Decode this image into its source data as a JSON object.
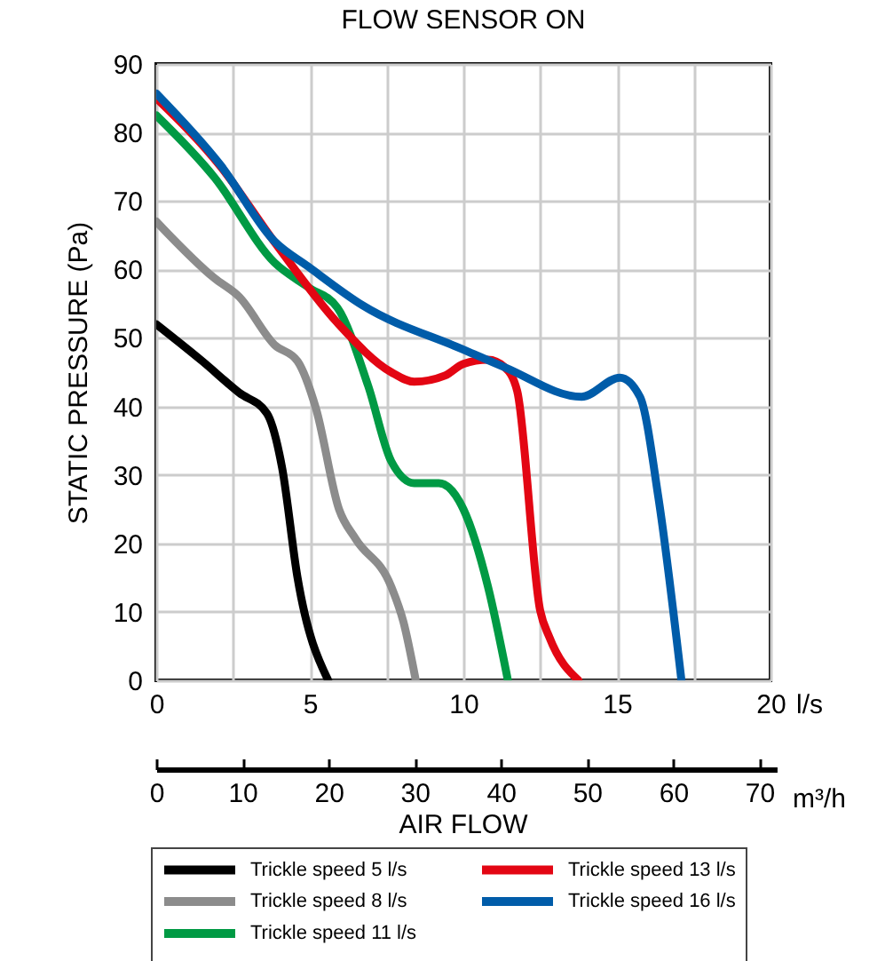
{
  "chart_data": {
    "type": "line",
    "title": "FLOW SENSOR ON",
    "xlabel": "l/s",
    "ylabel": "STATIC PRESSURE (Pa)",
    "x2label": "m³/h",
    "annotations": [
      "AIR FLOW"
    ],
    "xlim": [
      0,
      20
    ],
    "xticks": [
      0,
      {
        "value": 2.5,
        "label": null
      },
      5,
      {
        "value": 7.5,
        "label": null
      },
      10,
      {
        "value": 12.5,
        "label": null
      },
      15,
      {
        "value": 17.5,
        "label": null
      },
      20
    ],
    "ylim": [
      0,
      90
    ],
    "yticks": [
      0,
      10,
      20,
      30,
      40,
      50,
      60,
      70,
      80,
      90
    ],
    "x2lim": [
      0,
      72
    ],
    "x2ticks": [
      0,
      10,
      20,
      30,
      40,
      50,
      60,
      70
    ],
    "grid": true,
    "legend": "bottom",
    "line_style": "solid",
    "marker": "none",
    "series": [
      {
        "name": "Trickle speed 5 l/s",
        "color": "#000000",
        "x": [
          0,
          1.5,
          2.7,
          3.6,
          4.1,
          4.6,
          5.6
        ],
        "values": [
          52,
          46.6,
          42,
          39,
          31,
          15,
          0
        ]
      },
      {
        "name": "Trickle speed 8 l/s",
        "color": "#8c8c8c",
        "x": [
          0,
          1.9,
          2.7,
          3.85,
          4.6,
          5.2,
          5.95,
          6.5,
          7.65,
          8.05,
          8.45
        ],
        "values": [
          67,
          58.7,
          56,
          49,
          46.6,
          39.7,
          25,
          20.6,
          13.7,
          8.5,
          0
        ]
      },
      {
        "name": "Trickle speed 11 l/s",
        "color": "#009a44",
        "x": [
          0,
          1.9,
          3.85,
          4.95,
          5.9,
          6.9,
          7.65,
          8.4,
          9.2,
          10,
          10.8,
          11.45
        ],
        "values": [
          82.5,
          73.4,
          61,
          57.4,
          54.4,
          43,
          32,
          28.8,
          28.8,
          25,
          13.7,
          0
        ]
      },
      {
        "name": "Trickle speed 13 l/s",
        "color": "#e30613",
        "x": [
          0,
          2.1,
          3.85,
          5.9,
          7.65,
          8.4,
          9.4,
          10,
          10.8,
          11.35,
          11.75,
          12.5,
          12.8,
          13.75
        ],
        "values": [
          85,
          75,
          64,
          52.2,
          45,
          43.6,
          44.5,
          46.2,
          46.8,
          45.7,
          42.3,
          10.2,
          6.3,
          0
        ]
      },
      {
        "name": "Trickle speed 16 l/s",
        "color": "#005ca9",
        "x": [
          0,
          2.1,
          3.85,
          4.95,
          6.7,
          10,
          11.35,
          13.85,
          15.1,
          15.75,
          16.35,
          17.1
        ],
        "values": [
          85.7,
          75.2,
          64.1,
          60.4,
          54.8,
          48.3,
          45.7,
          41.4,
          44.2,
          41.4,
          26.7,
          0
        ]
      }
    ]
  }
}
